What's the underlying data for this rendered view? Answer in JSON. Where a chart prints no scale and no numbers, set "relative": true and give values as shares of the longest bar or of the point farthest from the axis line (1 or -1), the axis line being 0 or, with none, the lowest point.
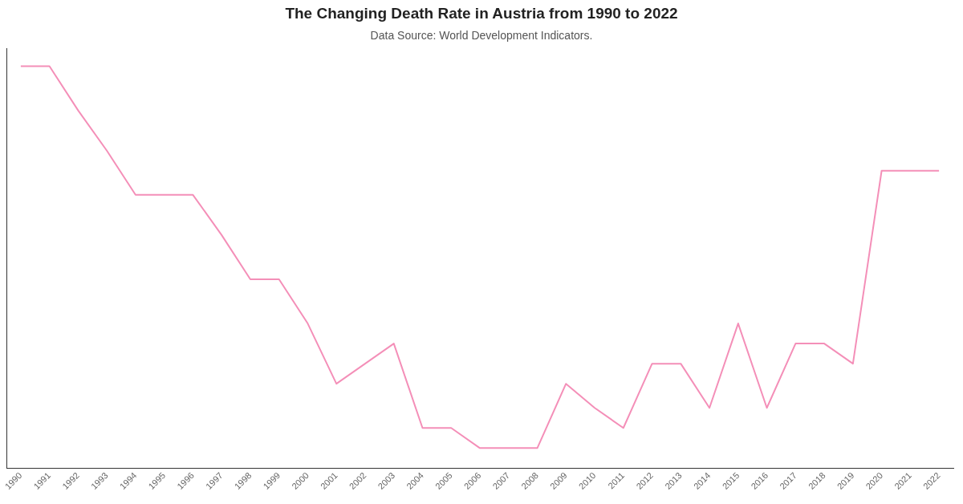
{
  "chart_data": {
    "type": "line",
    "title": "The Changing Death Rate in Austria from 1990 to 2022",
    "subtitle": "Data Source: World Development Indicators.",
    "relative": true,
    "grid": false,
    "legend": false,
    "marker": "none",
    "line_style": "solid",
    "categories": [
      "1990",
      "1991",
      "1992",
      "1993",
      "1994",
      "1995",
      "1996",
      "1997",
      "1998",
      "1999",
      "2000",
      "2001",
      "2002",
      "2003",
      "2004",
      "2005",
      "2006",
      "2007",
      "2008",
      "2009",
      "2010",
      "2011",
      "2012",
      "2013",
      "2014",
      "2015",
      "2016",
      "2017",
      "2018",
      "2019",
      "2020",
      "2021",
      "2022"
    ],
    "series": [
      {
        "color": "#f48fb8",
        "values": [
          1,
          1,
          0.89,
          0.79,
          0.68,
          0.68,
          0.68,
          0.58,
          0.47,
          0.47,
          0.36,
          0.21,
          0.26,
          0.31,
          0.1,
          0.1,
          0.05,
          0.05,
          0.05,
          0.21,
          0.15,
          0.1,
          0.26,
          0.26,
          0.15,
          0.36,
          0.15,
          0.31,
          0.31,
          0.26,
          0.74,
          0.74,
          0.74
        ]
      }
    ]
  }
}
